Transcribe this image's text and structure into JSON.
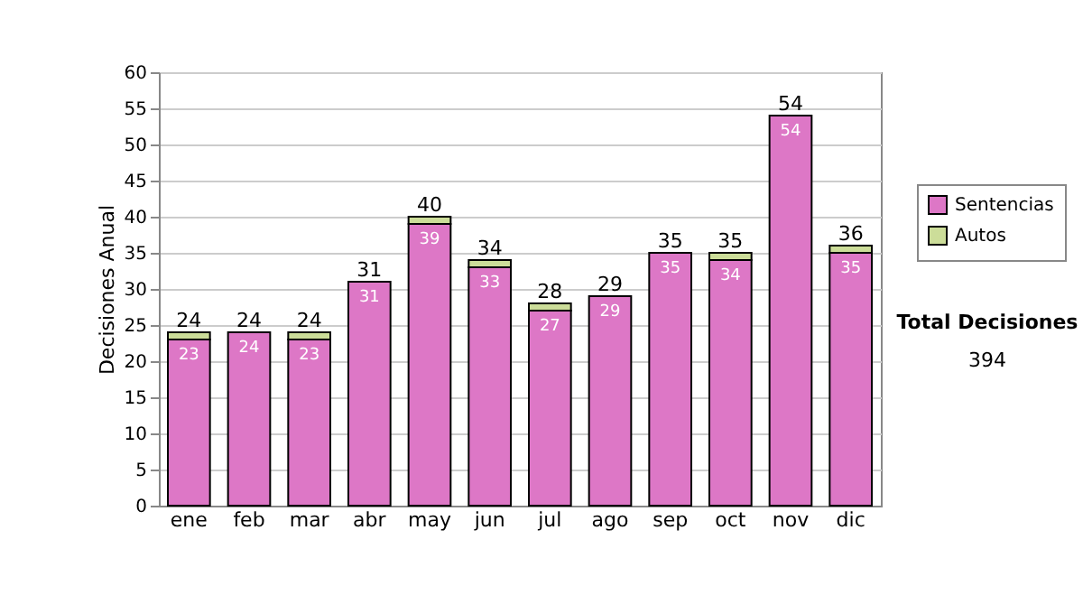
{
  "chart_data": {
    "type": "bar",
    "stacked": true,
    "ylabel": "Decisiones Anual",
    "categories": [
      "ene",
      "feb",
      "mar",
      "abr",
      "may",
      "jun",
      "jul",
      "ago",
      "sep",
      "oct",
      "nov",
      "dic"
    ],
    "series": [
      {
        "name": "Sentencias",
        "color": "#dd77c6",
        "values": [
          23,
          24,
          23,
          31,
          39,
          33,
          27,
          29,
          35,
          34,
          54,
          35
        ],
        "value_labels": [
          "23",
          "24",
          "23",
          "31",
          "39",
          "33",
          "27",
          "29",
          "35",
          "34",
          "54",
          "35"
        ]
      },
      {
        "name": "Autos",
        "color": "#ccdd99",
        "values": [
          1,
          0,
          1,
          0,
          1,
          1,
          1,
          0,
          0,
          1,
          0,
          1
        ]
      }
    ],
    "totals": [
      "24",
      "24",
      "24",
      "31",
      "40",
      "34",
      "28",
      "29",
      "35",
      "35",
      "54",
      "36"
    ],
    "ylim": [
      0,
      60
    ],
    "yticks": [
      0,
      5,
      10,
      15,
      20,
      25,
      30,
      35,
      40,
      45,
      50,
      55,
      60
    ],
    "grid": "y",
    "legend": "right",
    "annotations": [
      "Total Decisiones",
      "394"
    ]
  }
}
